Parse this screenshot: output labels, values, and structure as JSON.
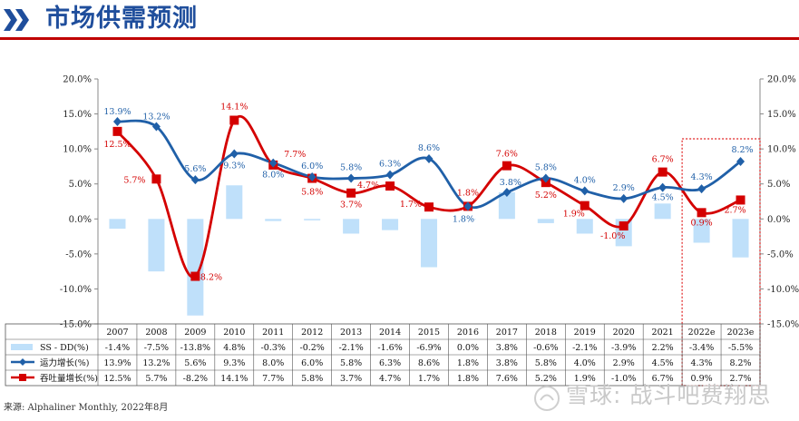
{
  "header": {
    "title": "市场供需预测"
  },
  "footer": {
    "source": "来源:  Alphaliner Monthly, 2022年8月"
  },
  "watermark": {
    "text": "雪球: 战斗吧费翔思"
  },
  "colors": {
    "ss_dd": "#bfe0fa",
    "capacity": "#2060a8",
    "throughput": "#d40000",
    "title": "#1f4e9c",
    "rule": "#c00000",
    "forecast_box": "#e02020"
  },
  "chart_data": {
    "type": "bar",
    "categories": [
      "2007",
      "2008",
      "2009",
      "2010",
      "2011",
      "2012",
      "2013",
      "2014",
      "2015",
      "2016",
      "2017",
      "2018",
      "2019",
      "2020",
      "2021",
      "2022e",
      "2023e"
    ],
    "ylim": [
      -15,
      20
    ],
    "yticks": [
      -15,
      -10,
      -5,
      0,
      5,
      10,
      15,
      20
    ],
    "ytick_labels": [
      "-15.0%",
      "-10.0%",
      "-5.0%",
      "0.0%",
      "5.0%",
      "10.0%",
      "15.0%",
      "20.0%"
    ],
    "grid": false,
    "forecast_categories": [
      "2022e",
      "2023e"
    ],
    "series": [
      {
        "name": "SS - DD(%)",
        "type": "bar",
        "color": "#bfe0fa",
        "values": [
          -1.4,
          -7.5,
          -13.8,
          4.8,
          -0.3,
          -0.2,
          -2.1,
          -1.6,
          -6.9,
          0.0,
          3.8,
          -0.6,
          -2.1,
          -3.9,
          2.2,
          -3.4,
          -5.5
        ],
        "table_labels": [
          "-1.4%",
          "-7.5%",
          "-13.8%",
          "4.8%",
          "-0.3%",
          "-0.2%",
          "-2.1%",
          "-1.6%",
          "-6.9%",
          "0.0%",
          "3.8%",
          "-0.6%",
          "-2.1%",
          "-3.9%",
          "2.2%",
          "-3.4%",
          "-5.5%"
        ]
      },
      {
        "name": "运力增长(%)",
        "type": "line",
        "marker": "diamond",
        "color": "#2060a8",
        "values": [
          13.9,
          13.2,
          5.6,
          9.3,
          8.0,
          6.0,
          5.8,
          6.3,
          8.6,
          1.8,
          3.8,
          5.8,
          4.0,
          2.9,
          4.5,
          4.3,
          8.2
        ],
        "point_labels": [
          "13.9%",
          "13.2%",
          "5.6%",
          "9.3%",
          "8.0%",
          "6.0%",
          "5.8%",
          "6.3%",
          "8.6%",
          "1.8%",
          "3.8%",
          "5.8%",
          "4.0%",
          "2.9%",
          "4.5%",
          "4.3%",
          "8.2%"
        ],
        "table_labels": [
          "13.9%",
          "13.2%",
          "5.6%",
          "9.3%",
          "8.0%",
          "6.0%",
          "5.8%",
          "6.3%",
          "8.6%",
          "1.8%",
          "3.8%",
          "5.8%",
          "4.0%",
          "2.9%",
          "4.5%",
          "4.3%",
          "8.2%"
        ]
      },
      {
        "name": "吞吐量增长(%)",
        "type": "line",
        "marker": "square",
        "color": "#d40000",
        "values": [
          12.5,
          5.7,
          -8.2,
          14.1,
          7.7,
          5.8,
          3.7,
          4.7,
          1.7,
          1.8,
          7.6,
          5.2,
          1.9,
          -1.0,
          6.7,
          0.9,
          2.7
        ],
        "point_labels": [
          "12.5%",
          "5.7%",
          "-8.2%",
          "14.1%",
          "7.7%",
          "5.8%",
          "3.7%",
          "4.7%",
          "1.7%",
          "1.8%",
          "7.6%",
          "5.2%",
          "1.9%",
          "-1.0%",
          "6.7%",
          "0.9%",
          "2.7%"
        ],
        "table_labels": [
          "12.5%",
          "5.7%",
          "-8.2%",
          "14.1%",
          "7.7%",
          "5.8%",
          "3.7%",
          "4.7%",
          "1.7%",
          "1.8%",
          "7.6%",
          "5.2%",
          "1.9%",
          "-1.0%",
          "6.7%",
          "0.9%",
          "2.7%"
        ]
      }
    ]
  }
}
